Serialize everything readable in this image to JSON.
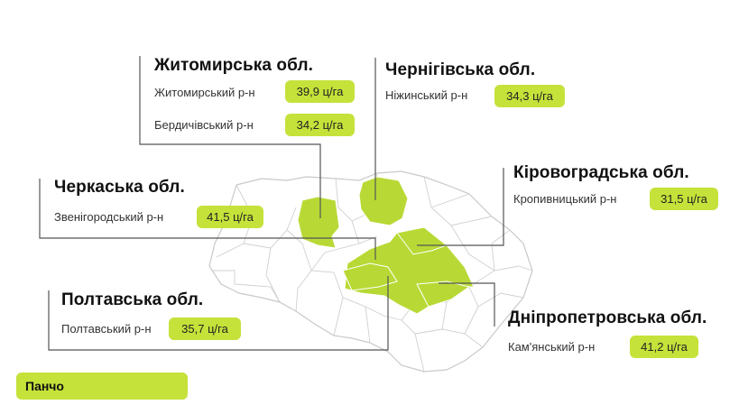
{
  "colors": {
    "highlight": "#c5e23a",
    "region_fill": "#b8d935",
    "border": "#c9c9c9",
    "leader": "#555555"
  },
  "regions": [
    {
      "oblast": "Житомирська обл.",
      "districts": [
        {
          "name": "Житомирський р-н",
          "yield": "39,9 ц/га"
        },
        {
          "name": "Бердичівський р-н",
          "yield": "34,2 ц/га"
        }
      ]
    },
    {
      "oblast": "Чернігівська обл.",
      "districts": [
        {
          "name": "Ніжинський р-н",
          "yield": "34,3 ц/га"
        }
      ]
    },
    {
      "oblast": "Черкаська обл.",
      "districts": [
        {
          "name": "Звенігородський р-н",
          "yield": "41,5 ц/га"
        }
      ]
    },
    {
      "oblast": "Кіровоградська обл.",
      "districts": [
        {
          "name": "Кропивницький р-н",
          "yield": "31,5 ц/га"
        }
      ]
    },
    {
      "oblast": "Полтавська обл.",
      "districts": [
        {
          "name": "Полтавський р-н",
          "yield": "35,7 ц/га"
        }
      ]
    },
    {
      "oblast": "Дніпропетровська обл.",
      "districts": [
        {
          "name": "Кам'янський р-н",
          "yield": "41,2 ц/га"
        }
      ]
    }
  ],
  "brand": "Панчо"
}
